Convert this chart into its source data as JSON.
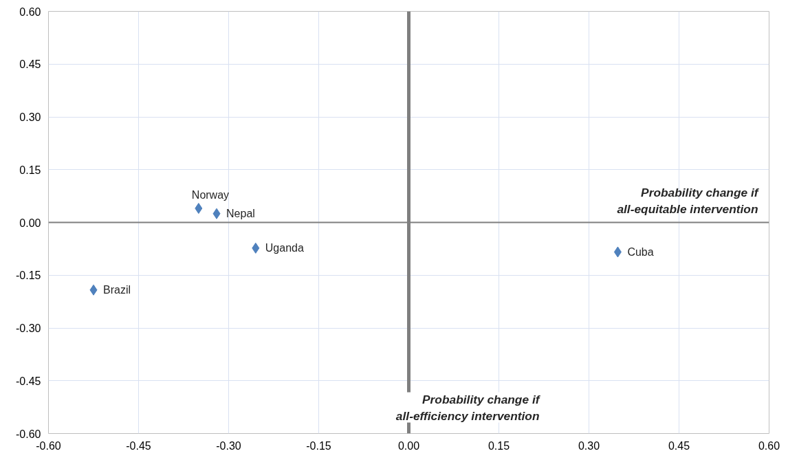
{
  "chart_data": {
    "type": "scatter",
    "xlabel": "Probability change if\nall-equitable intervention",
    "ylabel": "Probability change if\nall-efficiency intervention",
    "series": [
      {
        "name": "Norway",
        "color": "#4f81bd",
        "x": [
          -0.35
        ],
        "values": [
          0.04
        ]
      },
      {
        "name": "Nepal",
        "color": "#4f81bd",
        "x": [
          -0.32
        ],
        "values": [
          0.025
        ]
      },
      {
        "name": "Uganda",
        "color": "#4f81bd",
        "x": [
          -0.255
        ],
        "values": [
          -0.073
        ]
      },
      {
        "name": "Brazil",
        "color": "#4f81bd",
        "x": [
          -0.525
        ],
        "values": [
          -0.192
        ]
      },
      {
        "name": "Cuba",
        "color": "#4f81bd",
        "x": [
          0.348
        ],
        "values": [
          -0.084
        ]
      }
    ],
    "xlim": [
      -0.6,
      0.6
    ],
    "ylim": [
      -0.6,
      0.6
    ],
    "xticks": [
      {
        "value": -0.6,
        "label": "-0.60"
      },
      {
        "value": -0.45,
        "label": "-0.45"
      },
      {
        "value": -0.3,
        "label": "-0.30"
      },
      {
        "value": -0.15,
        "label": "-0.15"
      },
      {
        "value": 0,
        "label": "0.00"
      },
      {
        "value": 0.15,
        "label": "0.15"
      },
      {
        "value": 0.3,
        "label": "0.30"
      },
      {
        "value": 0.45,
        "label": "0.45"
      },
      {
        "value": 0.6,
        "label": "0.60"
      }
    ],
    "yticks": [
      {
        "value": -0.6,
        "label": "-0.60"
      },
      {
        "value": -0.45,
        "label": "-0.45"
      },
      {
        "value": -0.3,
        "label": "-0.30"
      },
      {
        "value": -0.15,
        "label": "-0.15"
      },
      {
        "value": 0,
        "label": "0.00"
      },
      {
        "value": 0.15,
        "label": "0.15"
      },
      {
        "value": 0.3,
        "label": "0.30"
      },
      {
        "value": 0.45,
        "label": "0.45"
      },
      {
        "value": 0.6,
        "label": "0.60"
      }
    ],
    "grid": true,
    "marker": "diamond"
  }
}
